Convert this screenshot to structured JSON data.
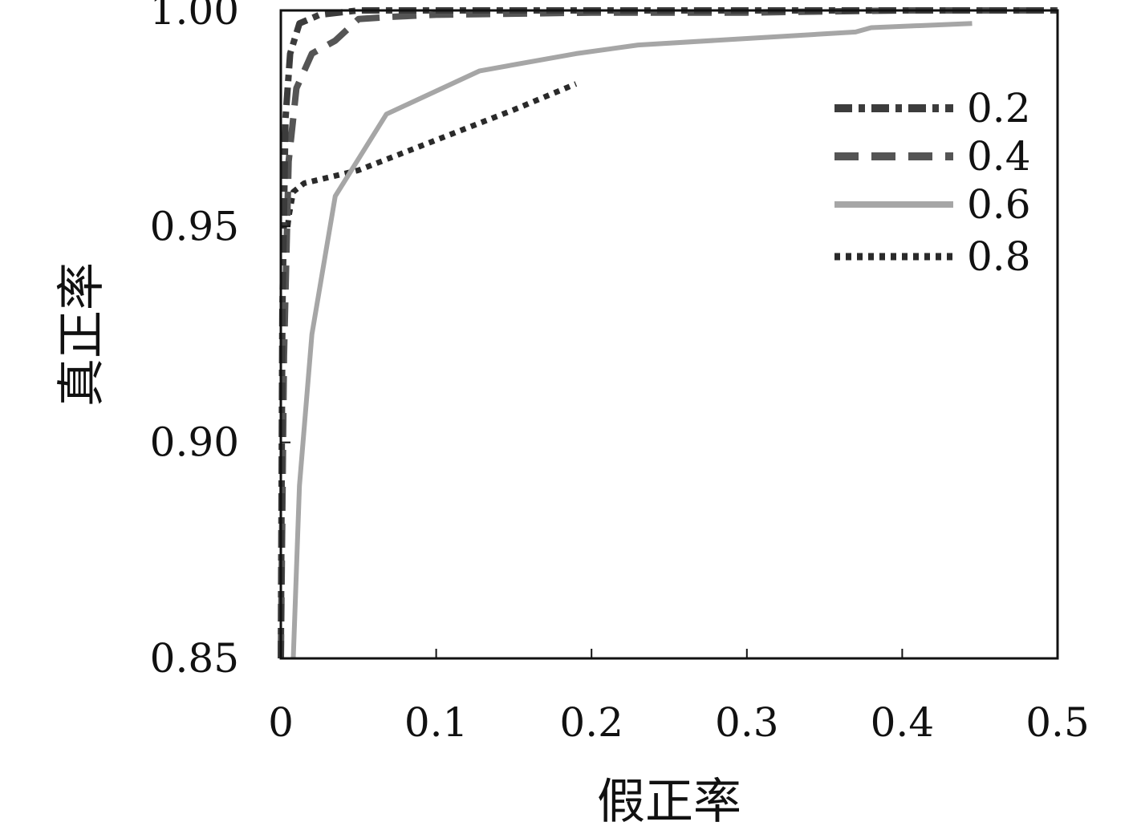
{
  "chart_data": {
    "type": "line",
    "title": "",
    "xlabel": "假正率",
    "ylabel": "真正率",
    "xlim": [
      0,
      0.5
    ],
    "ylim": [
      0.85,
      1.0
    ],
    "x_ticks": [
      0,
      0.1,
      0.2,
      0.3,
      0.4,
      0.5
    ],
    "x_tick_labels": [
      "0",
      "0.1",
      "0.2",
      "0.3",
      "0.4",
      "0.5"
    ],
    "y_ticks": [
      0.85,
      0.9,
      0.95,
      1.0
    ],
    "y_tick_labels": [
      "0.85",
      "0.90",
      "0.95",
      "1.00"
    ],
    "grid": false,
    "legend_position": "top-right",
    "series": [
      {
        "name": "0.2",
        "color": "#3c3c3c",
        "style": "dash-dot",
        "x": [
          0,
          0.001,
          0.003,
          0.006,
          0.012,
          0.025,
          0.05,
          0.1,
          0.2,
          0.3,
          0.4,
          0.5
        ],
        "y": [
          0.85,
          0.93,
          0.975,
          0.99,
          0.997,
          0.999,
          1.0,
          1.0,
          1.0,
          1.0,
          1.0,
          1.0
        ]
      },
      {
        "name": "0.4",
        "color": "#555555",
        "style": "dashed",
        "x": [
          0,
          0.002,
          0.005,
          0.01,
          0.02,
          0.035,
          0.05,
          0.07,
          0.1,
          0.2,
          0.3,
          0.4,
          0.5
        ],
        "y": [
          0.85,
          0.92,
          0.965,
          0.982,
          0.99,
          0.993,
          0.998,
          0.9985,
          0.999,
          0.9995,
          0.9995,
          1.0,
          1.0
        ]
      },
      {
        "name": "0.6",
        "color": "#a6a6a6",
        "style": "solid",
        "x": [
          0.008,
          0.012,
          0.02,
          0.035,
          0.068,
          0.128,
          0.19,
          0.23,
          0.3,
          0.37,
          0.38,
          0.445
        ],
        "y": [
          0.85,
          0.89,
          0.925,
          0.957,
          0.976,
          0.986,
          0.99,
          0.992,
          0.9935,
          0.995,
          0.996,
          0.997
        ]
      },
      {
        "name": "0.8",
        "color": "#2a2a2a",
        "style": "dotted",
        "x": [
          0.003,
          0.005,
          0.008,
          0.015,
          0.05,
          0.1,
          0.15,
          0.19
        ],
        "y": [
          0.945,
          0.952,
          0.958,
          0.96,
          0.963,
          0.97,
          0.977,
          0.983
        ]
      }
    ]
  }
}
